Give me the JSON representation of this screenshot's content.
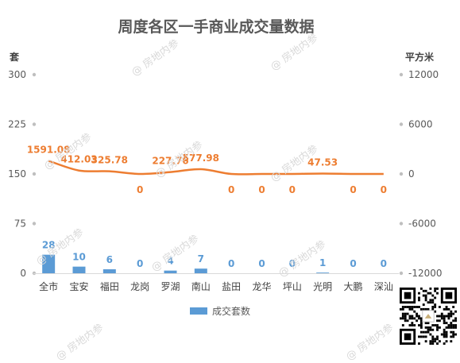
{
  "chart_data": {
    "type": "bar+line",
    "title": "周度各区一手商业成交量数据",
    "left_axis_unit": "套",
    "right_axis_unit": "平方米",
    "categories": [
      "全市",
      "宝安",
      "福田",
      "龙岗",
      "罗湖",
      "南山",
      "盐田",
      "龙华",
      "坪山",
      "光明",
      "大鹏",
      "深汕"
    ],
    "left_ticks": [
      0,
      75,
      150,
      225,
      300
    ],
    "right_ticks": [
      -12000,
      -6000,
      0,
      6000,
      12000
    ],
    "left_ylim": [
      0,
      300
    ],
    "right_ylim": [
      -12000,
      12000
    ],
    "bar_series": {
      "name": "成交套数",
      "values": [
        28,
        10,
        6,
        0,
        4,
        7,
        0,
        0,
        0,
        1,
        0,
        0
      ],
      "labels": [
        "28",
        "10",
        "6",
        "0",
        "4",
        "7",
        "0",
        "0",
        "0",
        "1",
        "0",
        "0"
      ],
      "color": "#5b9bd5"
    },
    "line_series": {
      "values": [
        1591.08,
        412.03,
        325.78,
        0,
        227.76,
        577.98,
        0,
        0,
        0,
        47.53,
        0,
        0
      ],
      "labels": [
        "1591.08",
        "412.03",
        "325.78",
        "0",
        "227.76",
        "577.98",
        "0",
        "0",
        "0",
        "47.53",
        "0",
        "0"
      ],
      "color": "#ed7d31"
    },
    "grid": false,
    "legend_position": "bottom"
  },
  "watermark_text": "房地内参"
}
